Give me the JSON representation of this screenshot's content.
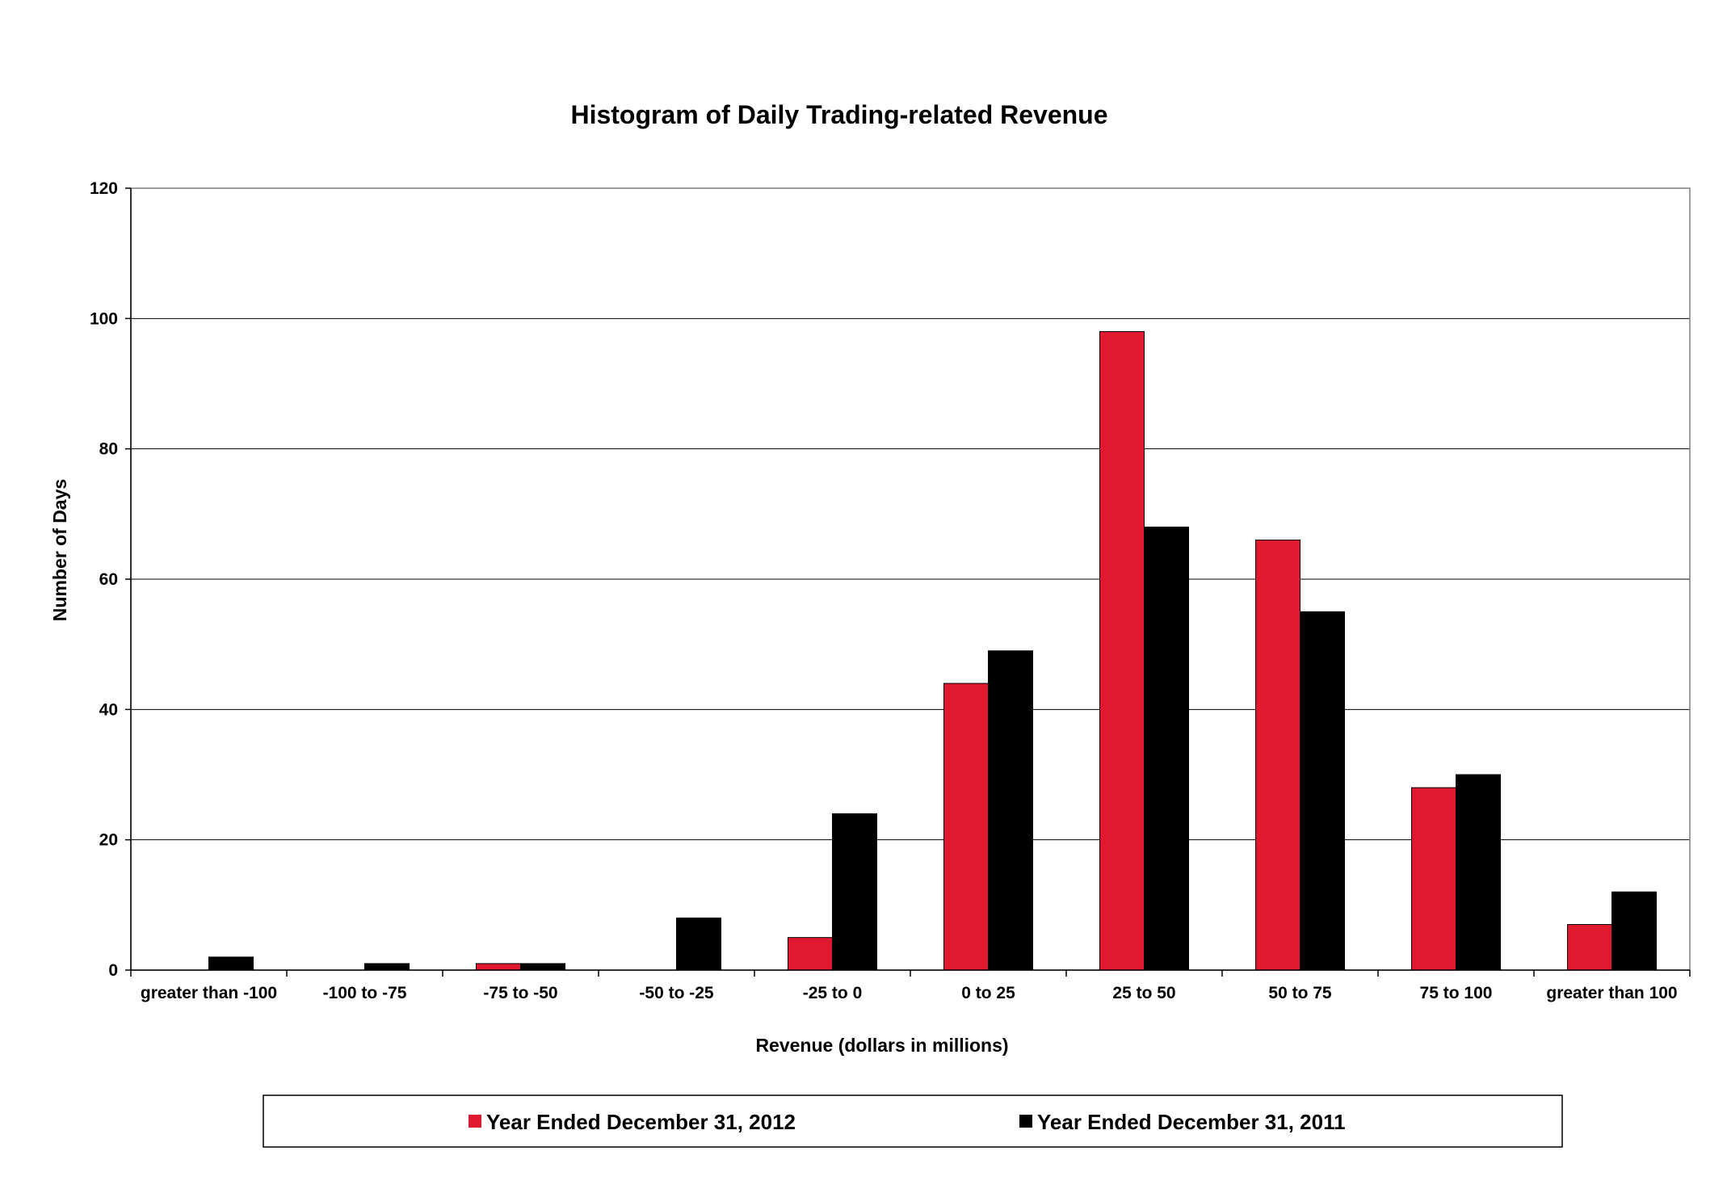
{
  "chart_data": {
    "type": "bar",
    "title": "Histogram of Daily Trading-related Revenue",
    "xlabel": "Revenue (dollars in millions)",
    "ylabel": "Number of Days",
    "ylim": [
      0,
      120
    ],
    "y_ticks": [
      "0",
      "20",
      "40",
      "60",
      "80",
      "100",
      "120"
    ],
    "grid": true,
    "legend_position": "bottom",
    "categories": [
      "greater than -100",
      "-100 to -75",
      "-75 to -50",
      "-50 to -25",
      "-25 to 0",
      "0 to 25",
      "25 to 50",
      "50 to 75",
      "75 to 100",
      "greater than 100"
    ],
    "series": [
      {
        "name": "Year Ended December 31, 2012",
        "color": "#e0192f",
        "values": [
          0,
          0,
          1,
          0,
          5,
          44,
          98,
          66,
          28,
          7
        ]
      },
      {
        "name": "Year Ended December 31, 2011",
        "color": "#000000",
        "values": [
          2,
          1,
          1,
          8,
          24,
          49,
          68,
          55,
          30,
          12
        ]
      }
    ]
  }
}
